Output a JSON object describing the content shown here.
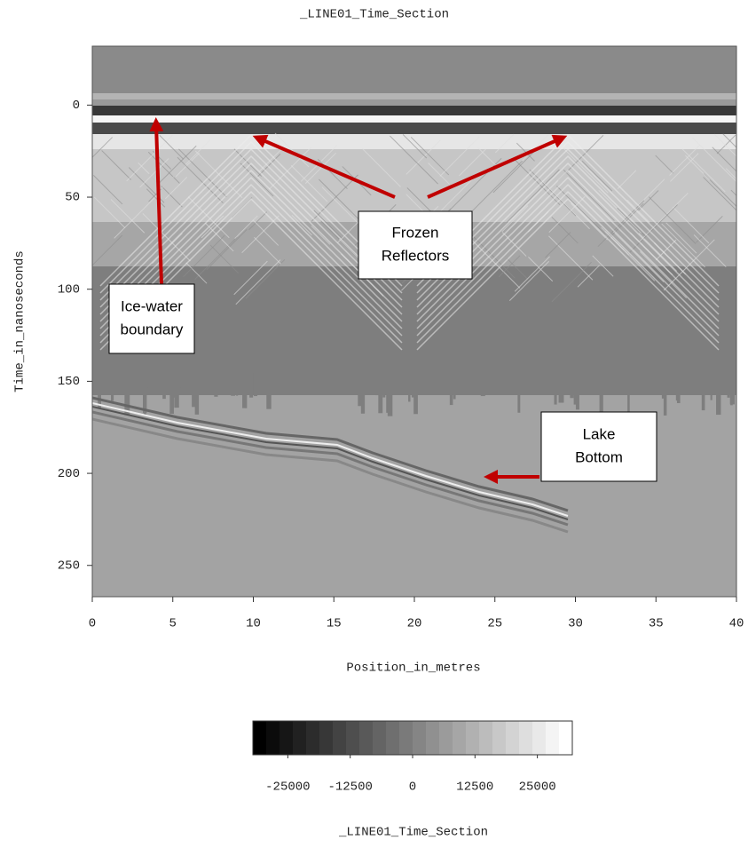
{
  "chart_data": {
    "type": "radargram",
    "title": "_LINE01_Time_Section",
    "xlabel": "Position_in_metres",
    "ylabel": "Time_in_nanoseconds",
    "xlim": [
      0,
      40
    ],
    "xticks": [
      0,
      5,
      10,
      15,
      20,
      25,
      30,
      35,
      40
    ],
    "ylim": [
      267,
      -32
    ],
    "yticks": [
      0,
      50,
      100,
      150,
      200,
      250
    ],
    "colorbar": {
      "label": "_LINE01_Time_Section",
      "clim": [
        -32000,
        32000
      ],
      "ticks": [
        -25000,
        -12500,
        0,
        12500,
        25000
      ]
    },
    "annotations": [
      {
        "lines": [
          "Frozen",
          "Reflectors"
        ]
      },
      {
        "lines": [
          "Ice-water",
          "boundary"
        ]
      },
      {
        "lines": [
          "Lake",
          "Bottom"
        ]
      }
    ]
  }
}
